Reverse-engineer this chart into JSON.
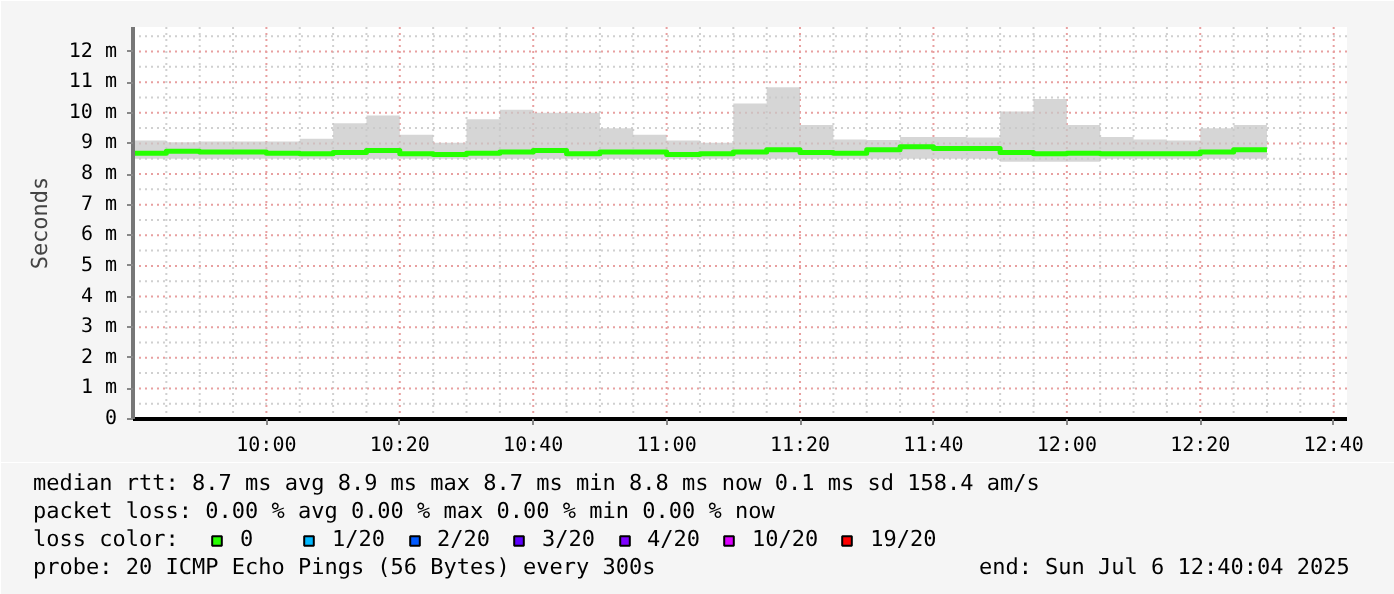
{
  "chart_data": {
    "type": "step",
    "ylabel": "Seconds",
    "legend_title": "loss color:",
    "legend": "bottom",
    "grid": true,
    "x": [
      9.6667,
      9.75,
      9.8333,
      9.9167,
      10,
      10.0833,
      10.1667,
      10.25,
      10.3333,
      10.4167,
      10.5,
      10.5833,
      10.6667,
      10.75,
      10.8333,
      10.9167,
      11,
      11.0833,
      11.1667,
      11.25,
      11.3333,
      11.4167,
      11.5,
      11.5833,
      11.6667,
      11.75,
      11.8333,
      11.9167,
      12,
      12.0833,
      12.1667,
      12.25,
      12.3333,
      12.4167,
      12.5
    ],
    "xlim": [
      9.6667,
      12.7
    ],
    "xticks": [
      {
        "value": 9.75,
        "label": null
      },
      {
        "value": 9.8333,
        "label": null
      },
      {
        "value": 9.9167,
        "label": null
      },
      {
        "value": 10,
        "label": "10:00"
      },
      {
        "value": 10.0833,
        "label": null
      },
      {
        "value": 10.1667,
        "label": null
      },
      {
        "value": 10.25,
        "label": null
      },
      {
        "value": 10.3333,
        "label": "10:20"
      },
      {
        "value": 10.4167,
        "label": null
      },
      {
        "value": 10.5,
        "label": null
      },
      {
        "value": 10.5833,
        "label": null
      },
      {
        "value": 10.6667,
        "label": "10:40"
      },
      {
        "value": 10.75,
        "label": null
      },
      {
        "value": 10.8333,
        "label": null
      },
      {
        "value": 10.9167,
        "label": null
      },
      {
        "value": 11,
        "label": "11:00"
      },
      {
        "value": 11.0833,
        "label": null
      },
      {
        "value": 11.1667,
        "label": null
      },
      {
        "value": 11.25,
        "label": null
      },
      {
        "value": 11.3333,
        "label": "11:20"
      },
      {
        "value": 11.4167,
        "label": null
      },
      {
        "value": 11.5,
        "label": null
      },
      {
        "value": 11.5833,
        "label": null
      },
      {
        "value": 11.6667,
        "label": "11:40"
      },
      {
        "value": 11.75,
        "label": null
      },
      {
        "value": 11.8333,
        "label": null
      },
      {
        "value": 11.9167,
        "label": null
      },
      {
        "value": 12,
        "label": "12:00"
      },
      {
        "value": 12.0833,
        "label": null
      },
      {
        "value": 12.1667,
        "label": null
      },
      {
        "value": 12.25,
        "label": null
      },
      {
        "value": 12.3333,
        "label": "12:20"
      },
      {
        "value": 12.4167,
        "label": null
      },
      {
        "value": 12.5,
        "label": null
      },
      {
        "value": 12.5833,
        "label": null
      },
      {
        "value": 12.6667,
        "label": "12:40"
      }
    ],
    "ylim": [
      0,
      12.8
    ],
    "yticks": [
      0,
      {
        "value": 0.5,
        "label": null
      },
      {
        "value": 1,
        "label": "1 m"
      },
      {
        "value": 1.5,
        "label": null
      },
      {
        "value": 2,
        "label": "2 m"
      },
      {
        "value": 2.5,
        "label": null
      },
      {
        "value": 3,
        "label": "3 m"
      },
      {
        "value": 3.5,
        "label": null
      },
      {
        "value": 4,
        "label": "4 m"
      },
      {
        "value": 4.5,
        "label": null
      },
      {
        "value": 5,
        "label": "5 m"
      },
      {
        "value": 5.5,
        "label": null
      },
      {
        "value": 6,
        "label": "6 m"
      },
      {
        "value": 6.5,
        "label": null
      },
      {
        "value": 7,
        "label": "7 m"
      },
      {
        "value": 7.5,
        "label": null
      },
      {
        "value": 8,
        "label": "8 m"
      },
      {
        "value": 8.5,
        "label": null
      },
      {
        "value": 9,
        "label": "9 m"
      },
      {
        "value": 9.5,
        "label": null
      },
      {
        "value": 10,
        "label": "10 m"
      },
      {
        "value": 10.5,
        "label": null
      },
      {
        "value": 11,
        "label": "11 m"
      },
      {
        "value": 11.5,
        "label": null
      },
      {
        "value": 12,
        "label": "12 m"
      },
      {
        "value": 12.5,
        "label": null
      }
    ],
    "series": [
      {
        "name": "0",
        "color": "#26ff00",
        "values": [
          8.68,
          8.74,
          8.72,
          8.72,
          8.68,
          8.66,
          8.7,
          8.77,
          8.66,
          8.64,
          8.68,
          8.72,
          8.77,
          8.66,
          8.72,
          8.72,
          8.64,
          8.66,
          8.72,
          8.79,
          8.7,
          8.68,
          8.79,
          8.89,
          8.83,
          8.83,
          8.7,
          8.66,
          8.68,
          8.66,
          8.66,
          8.66,
          8.72,
          8.79,
          8.79
        ],
        "lower": [
          8.5,
          8.5,
          8.5,
          8.5,
          8.5,
          8.5,
          8.5,
          8.5,
          8.5,
          8.5,
          8.5,
          8.5,
          8.5,
          8.5,
          8.5,
          8.5,
          8.5,
          8.5,
          8.5,
          8.5,
          8.5,
          8.5,
          8.5,
          8.5,
          8.5,
          8.5,
          8.4,
          8.4,
          8.4,
          8.5,
          8.5,
          8.5,
          8.5,
          8.5,
          8.5
        ],
        "upper": [
          9.09,
          9.04,
          9.06,
          9.06,
          9.06,
          9.15,
          9.66,
          9.91,
          9.28,
          9.02,
          9.79,
          10.1,
          10.0,
          10.0,
          9.49,
          9.28,
          9.09,
          9.02,
          10.3,
          10.83,
          9.6,
          9.13,
          9.11,
          9.21,
          9.21,
          9.19,
          10.04,
          10.45,
          9.6,
          9.21,
          9.13,
          9.09,
          9.49,
          9.6,
          9.6
        ]
      },
      {
        "name": "1/20",
        "color": "#00b8ff",
        "values": [
          null,
          null,
          null,
          null,
          null,
          null,
          null,
          null,
          null,
          null,
          null,
          null,
          null,
          null,
          null,
          null,
          null,
          null,
          null,
          null,
          null,
          null,
          null,
          null,
          null,
          null,
          null,
          null,
          null,
          null,
          null,
          null,
          null,
          null,
          null
        ]
      },
      {
        "name": "2/20",
        "color": "#0059ff",
        "values": [
          null,
          null,
          null,
          null,
          null,
          null,
          null,
          null,
          null,
          null,
          null,
          null,
          null,
          null,
          null,
          null,
          null,
          null,
          null,
          null,
          null,
          null,
          null,
          null,
          null,
          null,
          null,
          null,
          null,
          null,
          null,
          null,
          null,
          null,
          null
        ]
      },
      {
        "name": "3/20",
        "color": "#5e00ff",
        "values": [
          null,
          null,
          null,
          null,
          null,
          null,
          null,
          null,
          null,
          null,
          null,
          null,
          null,
          null,
          null,
          null,
          null,
          null,
          null,
          null,
          null,
          null,
          null,
          null,
          null,
          null,
          null,
          null,
          null,
          null,
          null,
          null,
          null,
          null,
          null
        ]
      },
      {
        "name": "4/20",
        "color": "#7e00ff",
        "values": [
          null,
          null,
          null,
          null,
          null,
          null,
          null,
          null,
          null,
          null,
          null,
          null,
          null,
          null,
          null,
          null,
          null,
          null,
          null,
          null,
          null,
          null,
          null,
          null,
          null,
          null,
          null,
          null,
          null,
          null,
          null,
          null,
          null,
          null,
          null
        ]
      },
      {
        "name": "10/20",
        "color": "#dd00ff",
        "values": [
          null,
          null,
          null,
          null,
          null,
          null,
          null,
          null,
          null,
          null,
          null,
          null,
          null,
          null,
          null,
          null,
          null,
          null,
          null,
          null,
          null,
          null,
          null,
          null,
          null,
          null,
          null,
          null,
          null,
          null,
          null,
          null,
          null,
          null,
          null
        ]
      },
      {
        "name": "19/20",
        "color": "#ff0000",
        "values": [
          null,
          null,
          null,
          null,
          null,
          null,
          null,
          null,
          null,
          null,
          null,
          null,
          null,
          null,
          null,
          null,
          null,
          null,
          null,
          null,
          null,
          null,
          null,
          null,
          null,
          null,
          null,
          null,
          null,
          null,
          null,
          null,
          null,
          null,
          null
        ]
      }
    ],
    "annotations": [
      "median rtt:  8.7 ms avg  8.9 ms max  8.7 ms min  8.8 ms now  0.1 ms sd  158.4   am/s",
      "packet loss: 0.00 % avg  0.00 % max  0.00 % min  0.00 % now",
      "probe:       20 ICMP Echo Pings (56 Bytes) every 300s",
      "end: Sun Jul  6 12:40:04 2025"
    ]
  }
}
